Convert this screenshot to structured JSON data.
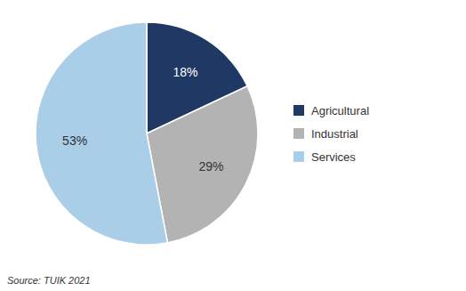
{
  "chart_data": {
    "type": "pie",
    "categories": [
      "Agricultural",
      "Industrial",
      "Services"
    ],
    "values": [
      18,
      29,
      53
    ],
    "value_labels": [
      "18%",
      "29%",
      "53%"
    ],
    "colors": [
      "#1f3864",
      "#b3b3b3",
      "#aacde8"
    ],
    "data_labels": true,
    "legend": "right",
    "source": "Source: TUIK 2021"
  }
}
